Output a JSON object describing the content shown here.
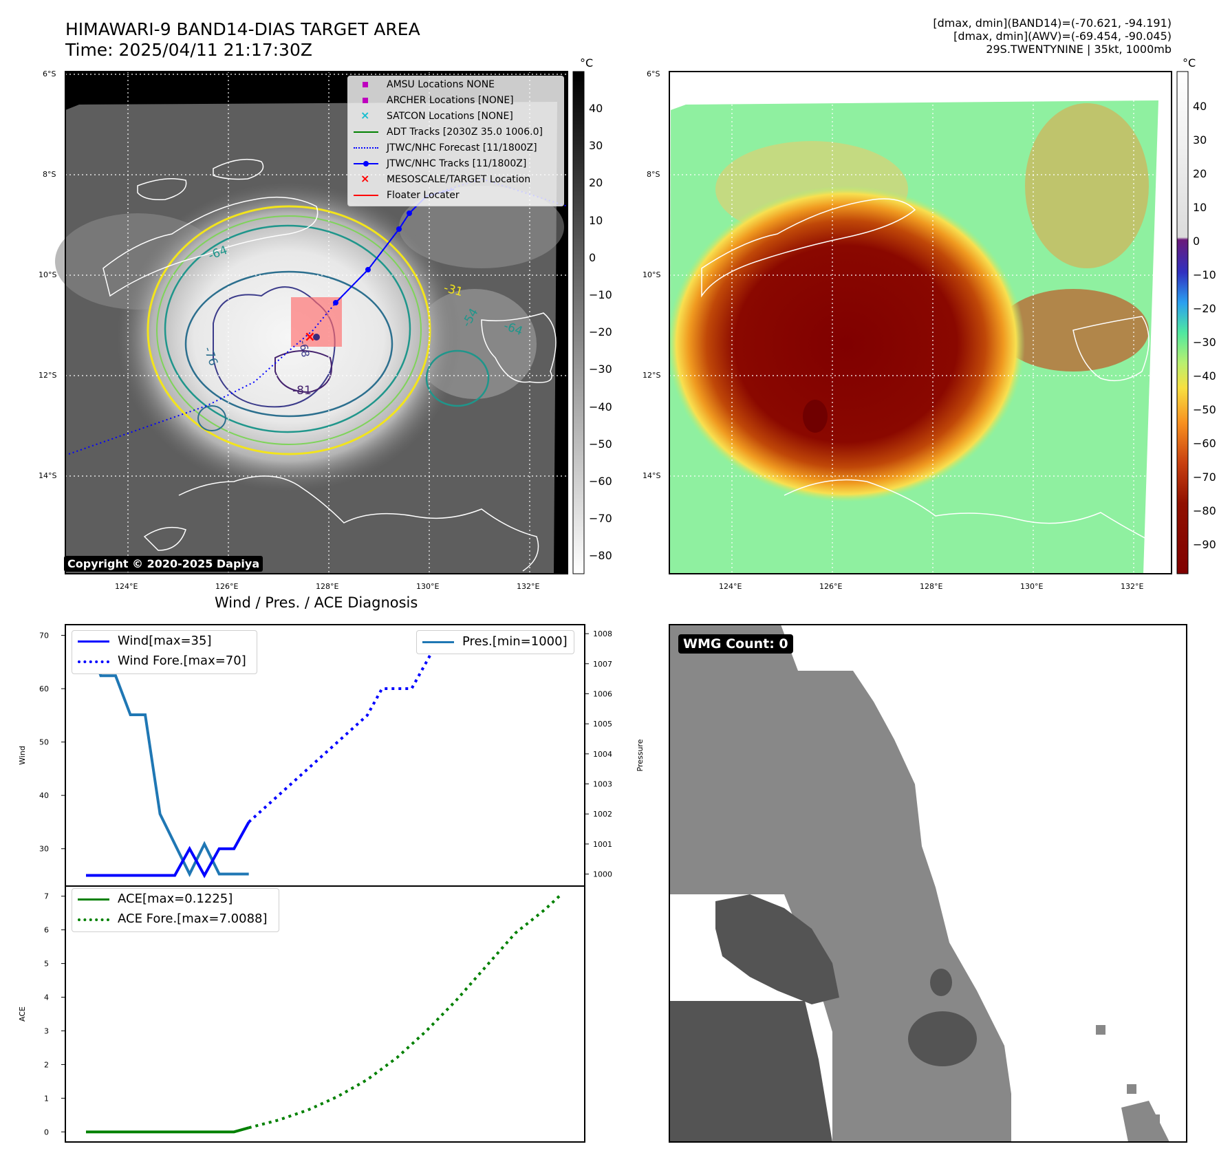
{
  "header": {
    "title_line1": "HIMAWARI-9 BAND14-DIAS TARGET AREA",
    "title_line2": "Time: 2025/04/11 21:17:30Z",
    "info_line1": "[dmax, dmin](BAND14)=(-70.621, -94.191)",
    "info_line2": "[dmax, dmin](AWV)=(-69.454, -90.045)",
    "info_line3": "29S.TWENTYNINE | 35kt, 1000mb"
  },
  "map_axes": {
    "lat_labels": [
      "6°S",
      "8°S",
      "10°S",
      "12°S",
      "14°S"
    ],
    "lon_labels": [
      "124°E",
      "126°E",
      "128°E",
      "130°E",
      "132°E"
    ]
  },
  "left_map": {
    "legend": [
      {
        "label": "AMSU Locations NONE",
        "symbol": "square",
        "color": "#bf00bf"
      },
      {
        "label": "ARCHER Locations [NONE]",
        "symbol": "square",
        "color": "#bf00bf"
      },
      {
        "label": "SATCON Locations [NONE]",
        "symbol": "x",
        "color": "#17becf"
      },
      {
        "label": "ADT Tracks [2030Z 35.0 1006.0]",
        "symbol": "solid",
        "color": "#008000"
      },
      {
        "label": "JTWC/NHC Forecast [11/1800Z]",
        "symbol": "dotted",
        "color": "#0000ff"
      },
      {
        "label": "JTWC/NHC Tracks [11/1800Z]",
        "symbol": "line-dot",
        "color": "#0000ff"
      },
      {
        "label": "MESOSCALE/TARGET Location",
        "symbol": "x",
        "color": "#ff0000"
      },
      {
        "label": "Floater Locater",
        "symbol": "solid",
        "color": "#ff0000"
      }
    ],
    "contour_labels": [
      "-64",
      "-76",
      "-81",
      "-54",
      "-64",
      "-31",
      "-68"
    ],
    "copyright": "Copyright © 2020-2025 Dapiya",
    "colorbar": {
      "unit": "°C",
      "ticks": [
        "40",
        "30",
        "20",
        "10",
        "0",
        "−10",
        "−20",
        "−30",
        "−40",
        "−50",
        "−60",
        "−70",
        "−80"
      ]
    }
  },
  "right_map": {
    "colorbar": {
      "unit": "°C",
      "ticks": [
        "40",
        "30",
        "20",
        "10",
        "0",
        "−10",
        "−20",
        "−30",
        "−40",
        "−50",
        "−60",
        "−70",
        "−80",
        "−90"
      ]
    }
  },
  "diagnosis_title": "Wind / Pres. / ACE Diagnosis",
  "wmg": {
    "label": "WMG Count: 0"
  },
  "chart_data": [
    {
      "type": "line",
      "title": "Wind / Pres. / ACE Diagnosis",
      "ylabel": "Wind",
      "ylim": [
        23,
        72
      ],
      "y_ticks": [
        "30",
        "40",
        "50",
        "60",
        "70"
      ],
      "series": [
        {
          "name": "Wind[max=35]",
          "style": "solid",
          "color": "#0000ff",
          "x": [
            0,
            1,
            2,
            3,
            4,
            5,
            6,
            7,
            8,
            9,
            10,
            11
          ],
          "values": [
            25,
            25,
            25,
            25,
            25,
            25,
            25,
            30,
            25,
            30,
            30,
            35
          ]
        },
        {
          "name": "Wind Fore.[max=70]",
          "style": "dotted",
          "color": "#0000ff",
          "x": [
            11,
            12,
            13,
            14,
            15,
            16,
            17,
            18,
            19,
            20,
            21,
            22,
            23,
            24,
            25,
            26,
            27,
            28,
            29,
            30,
            31,
            32
          ],
          "values": [
            35,
            37.5,
            40,
            42.5,
            45,
            47.5,
            50,
            52.5,
            55,
            60,
            60,
            60,
            65,
            70,
            70,
            70,
            70,
            70,
            70,
            70,
            70,
            67
          ]
        }
      ]
    },
    {
      "type": "line",
      "ylabel": "Pressure",
      "ylim": [
        999.6,
        1008.3
      ],
      "y_ticks": [
        "1000",
        "1001",
        "1002",
        "1003",
        "1004",
        "1005",
        "1006",
        "1007",
        "1008"
      ],
      "series": [
        {
          "name": "Pres.[min=1000]",
          "style": "solid",
          "color": "#1f77b4",
          "x": [
            0,
            1,
            2,
            3,
            4,
            5,
            6,
            7,
            8,
            9,
            10,
            11
          ],
          "values": [
            1008,
            1006.6,
            1006.6,
            1005.3,
            1005.3,
            1002,
            1001,
            1000,
            1001,
            1000,
            1000,
            1000
          ]
        }
      ]
    },
    {
      "type": "line",
      "ylabel": "ACE",
      "ylim": [
        -0.3,
        7.3
      ],
      "y_ticks": [
        "0",
        "1",
        "2",
        "3",
        "4",
        "5",
        "6",
        "7"
      ],
      "series": [
        {
          "name": "ACE[max=0.1225]",
          "style": "solid",
          "color": "#008000",
          "x": [
            0,
            1,
            2,
            3,
            4,
            5,
            6,
            7,
            8,
            9,
            10,
            11
          ],
          "values": [
            0,
            0,
            0,
            0,
            0,
            0,
            0,
            0,
            0,
            0,
            0,
            0.1225
          ]
        },
        {
          "name": "ACE Fore.[max=7.0088]",
          "style": "dotted",
          "color": "#008000",
          "x": [
            11,
            13,
            15,
            17,
            19,
            21,
            23,
            25,
            27,
            29,
            31,
            32
          ],
          "values": [
            0.1225,
            0.35,
            0.65,
            1.05,
            1.55,
            2.2,
            3.0,
            3.9,
            4.9,
            5.9,
            6.6,
            7.0088
          ]
        }
      ]
    }
  ]
}
